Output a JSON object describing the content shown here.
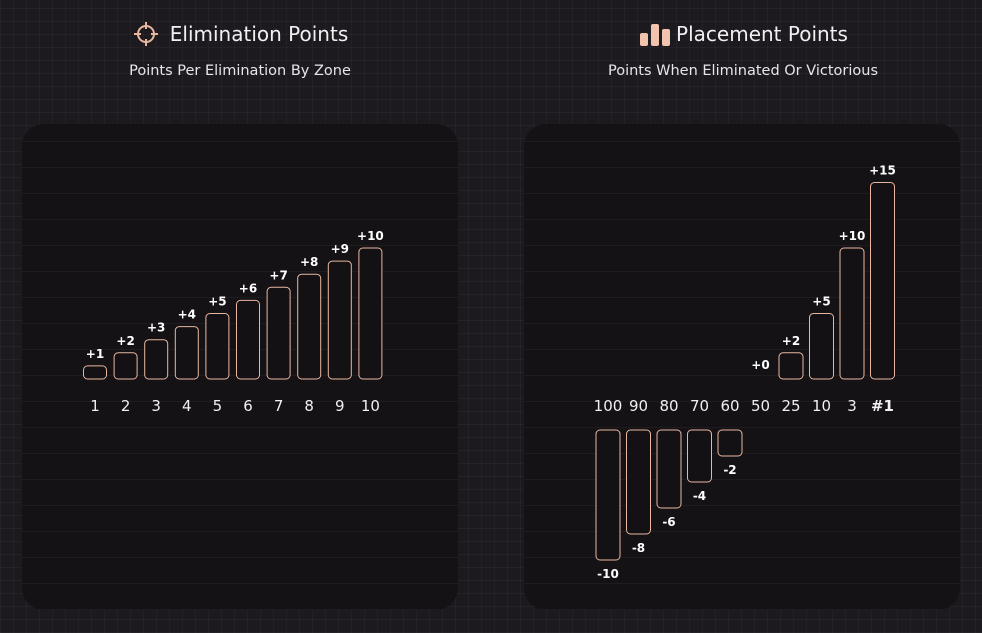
{
  "colors": {
    "accent": "#e9b7a0",
    "background": "#1c1a1e",
    "panel": "#141215",
    "text": "#f2eff3"
  },
  "left_header": {
    "icon": "crosshair-icon",
    "title": "Elimination Points",
    "subtitle": "Points Per Elimination By Zone"
  },
  "right_header": {
    "icon": "bar-chart-icon",
    "title": "Placement Points",
    "subtitle": "Points When Eliminated Or Victorious"
  },
  "chart_data": [
    {
      "type": "bar",
      "name": "elimination",
      "categories": [
        "1",
        "2",
        "3",
        "4",
        "5",
        "6",
        "7",
        "8",
        "9",
        "10"
      ],
      "values": [
        1,
        2,
        3,
        4,
        5,
        6,
        7,
        8,
        9,
        10
      ],
      "labels": [
        "+1",
        "+2",
        "+3",
        "+4",
        "+5",
        "+6",
        "+7",
        "+8",
        "+9",
        "+10"
      ],
      "ylim": [
        0,
        10
      ]
    },
    {
      "type": "bar",
      "name": "placement",
      "categories": [
        "100",
        "90",
        "80",
        "70",
        "60",
        "50",
        "25",
        "10",
        "3",
        "#1"
      ],
      "values": [
        -10,
        -8,
        -6,
        -4,
        -2,
        0,
        2,
        5,
        10,
        15
      ],
      "labels": [
        "-10",
        "-8",
        "-6",
        "-4",
        "-2",
        "+0",
        "+2",
        "+5",
        "+10",
        "+15"
      ],
      "highlight_category": "#1",
      "ylim": [
        -10,
        15
      ]
    }
  ]
}
